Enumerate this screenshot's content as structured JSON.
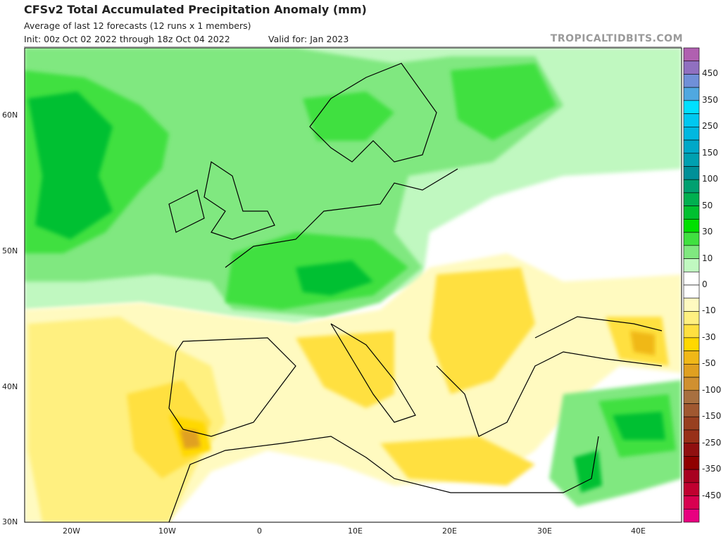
{
  "header": {
    "title": "CFSv2 Total Accumulated Precipitation Anomaly (mm)",
    "subtitle": "Average of last 12 forecasts (12 runs x 1 members)",
    "init": "Init: 00z Oct 02 2022 through 18z Oct 04 2022",
    "valid": "Valid for: Jan 2023",
    "brand": "TROPICALTIDBITS.COM"
  },
  "axes": {
    "lat_labels": [
      "60N",
      "50N",
      "40N",
      "30N"
    ],
    "lon_labels": [
      "20W",
      "10W",
      "0",
      "10E",
      "20E",
      "30E",
      "40E"
    ]
  },
  "colorbar": {
    "labels": [
      "450",
      "350",
      "250",
      "150",
      "100",
      "50",
      "30",
      "10",
      "0",
      "-10",
      "-30",
      "-50",
      "-100",
      "-150",
      "-250",
      "-350",
      "-450"
    ],
    "colors": [
      "#b060b0",
      "#9070c0",
      "#7090d8",
      "#50a8e0",
      "#00e0ff",
      "#00c8f0",
      "#00b8e0",
      "#00a8c8",
      "#00a0b0",
      "#009098",
      "#00a070",
      "#00b050",
      "#00c030",
      "#00e000",
      "#40e040",
      "#80e880",
      "#c0f8c0",
      "#ffffff",
      "#ffffff",
      "#fffac0",
      "#fff080",
      "#ffe040",
      "#ffd800",
      "#f0b818",
      "#e0a020",
      "#d09030",
      "#a87040",
      "#a05830",
      "#984020",
      "#983018",
      "#901010",
      "#900000",
      "#a80020",
      "#c00030",
      "#d80050",
      "#e80080"
    ]
  }
}
